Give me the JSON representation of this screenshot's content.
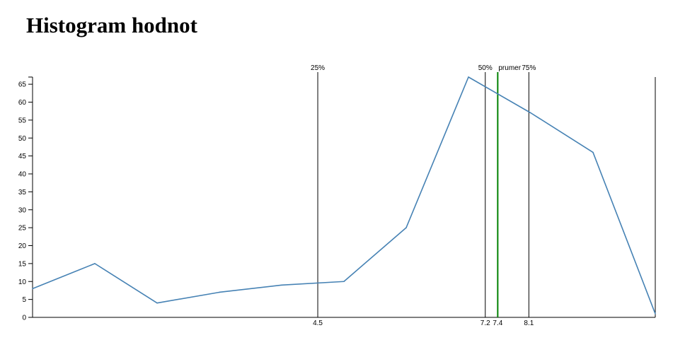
{
  "title": "Histogram hodnot",
  "colors": {
    "series": "#4682b4",
    "mean_line": "#008000",
    "quantile_line": "#000000",
    "axis": "#000000"
  },
  "chart_data": {
    "type": "line",
    "x": [
      1,
      2,
      3,
      4,
      5,
      6,
      7,
      8,
      9,
      10,
      11
    ],
    "series": [
      {
        "values": [
          8,
          15,
          4,
          7,
          9,
          10,
          25,
          67,
          57,
          46,
          1
        ]
      }
    ],
    "xlim": [
      1,
      11
    ],
    "ylim": [
      0,
      67
    ],
    "y_ticks": [
      0,
      5,
      10,
      15,
      20,
      25,
      30,
      35,
      40,
      45,
      50,
      55,
      60,
      65
    ],
    "grid": false,
    "markers": [
      {
        "label": "25%",
        "value_label": "4.5",
        "x": 5.58,
        "kind": "quantile"
      },
      {
        "label": "50%",
        "value_label": "7.2",
        "x": 8.27,
        "kind": "quantile"
      },
      {
        "label": "prumer",
        "value_label": "7.4",
        "x": 8.47,
        "kind": "mean"
      },
      {
        "label": "75%",
        "value_label": "8.1",
        "x": 8.97,
        "kind": "quantile"
      }
    ]
  }
}
